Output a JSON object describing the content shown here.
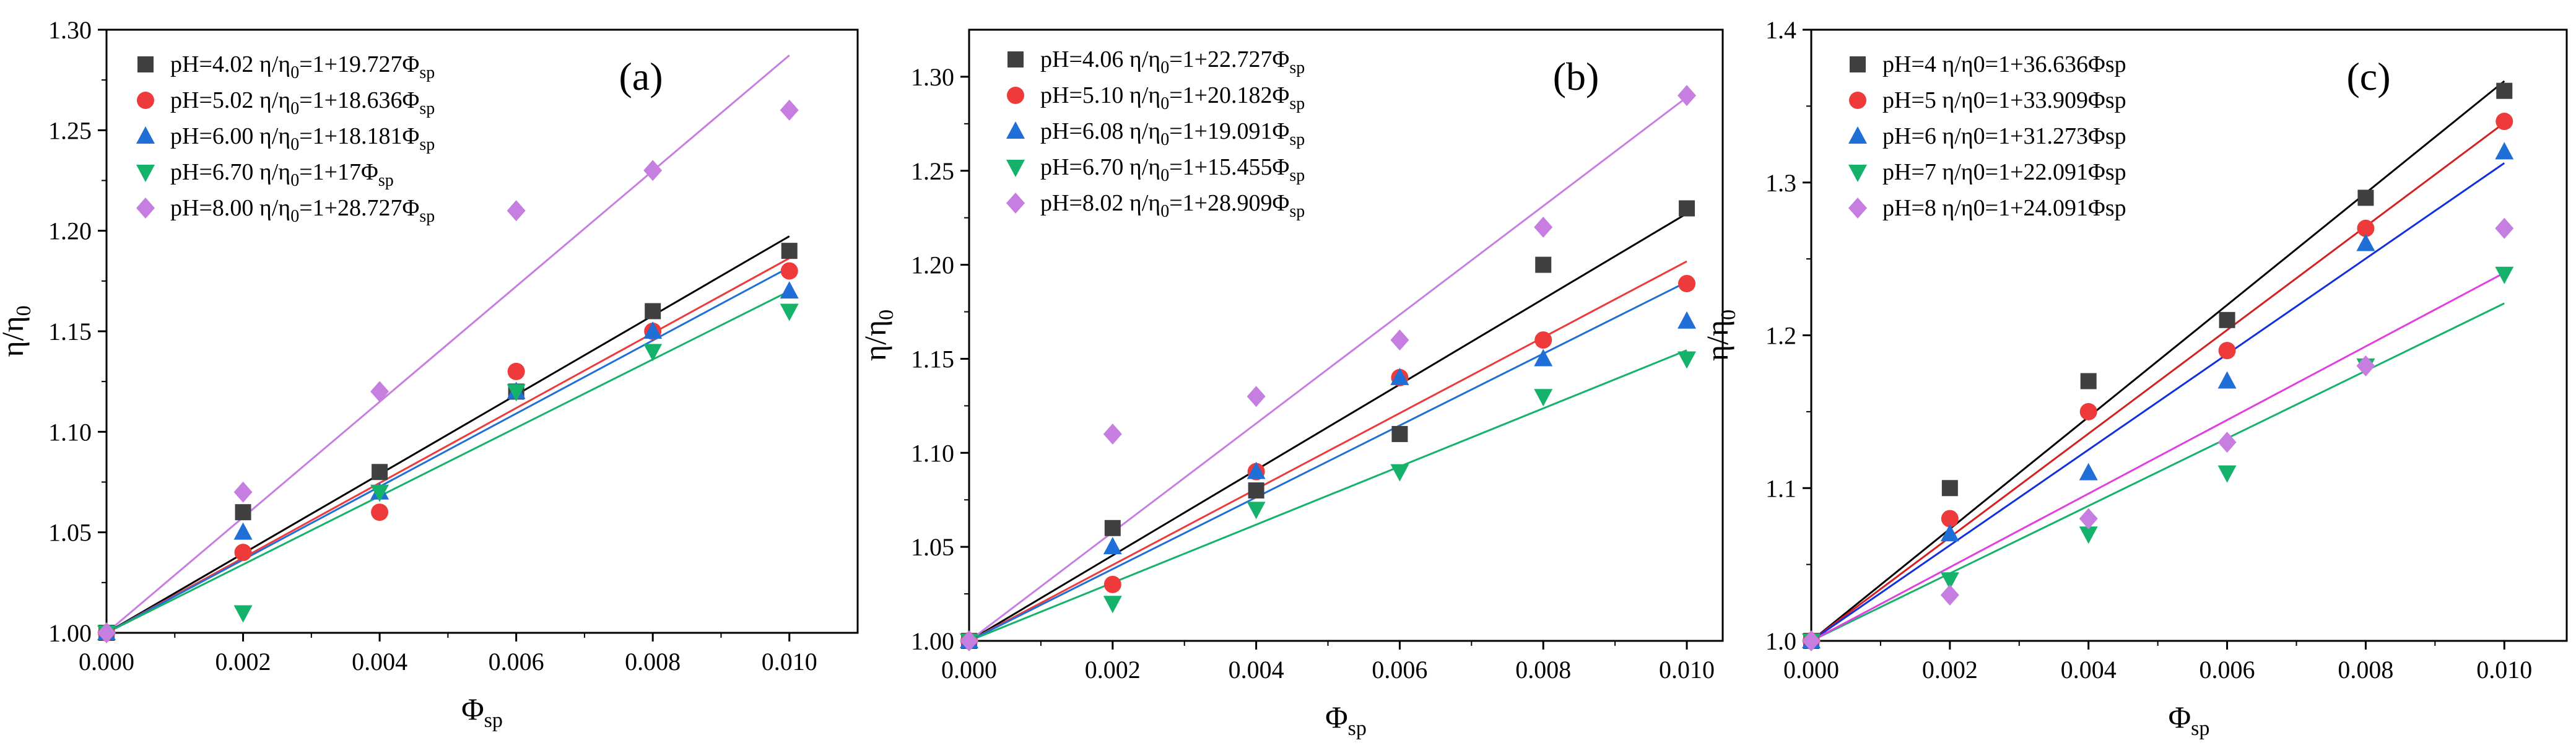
{
  "chart_data": [
    {
      "type": "scatter",
      "panel_label": "(a)",
      "xlabel_main": "Φ",
      "xlabel_sub": "sp",
      "ylabel_main": "η/η",
      "ylabel_sub": "0",
      "xlim": [
        0,
        0.011
      ],
      "ylim": [
        1.0,
        1.3
      ],
      "x_ticks": [
        0,
        0.002,
        0.004,
        0.006,
        0.008,
        0.01
      ],
      "x_tick_labels": [
        "0.000",
        "0.002",
        "0.004",
        "0.006",
        "0.008",
        "0.010"
      ],
      "y_ticks": [
        1.0,
        1.05,
        1.1,
        1.15,
        1.2,
        1.25,
        1.3
      ],
      "y_tick_labels": [
        "1.00",
        "1.05",
        "1.10",
        "1.15",
        "1.20",
        "1.25",
        "1.30"
      ],
      "x": [
        0,
        0.002,
        0.004,
        0.006,
        0.008,
        0.01
      ],
      "series": [
        {
          "name": "pH=4.02",
          "eq_main": "η/η",
          "eq_sub0": "0",
          "eq_rest": "=1+19.727Φ",
          "eq_sub": "sp",
          "marker": "square",
          "color": "#404040",
          "line_color": "#000000",
          "slope": 19.727,
          "values": [
            1.0,
            1.06,
            1.08,
            1.12,
            1.16,
            1.19
          ]
        },
        {
          "name": "pH=5.02",
          "eq_main": "η/η",
          "eq_sub0": "0",
          "eq_rest": "=1+18.636Φ",
          "eq_sub": "sp",
          "marker": "circle",
          "color": "#ee3a3a",
          "line_color": "#ee3a3a",
          "slope": 18.636,
          "values": [
            1.0,
            1.04,
            1.06,
            1.13,
            1.15,
            1.18
          ]
        },
        {
          "name": "pH=6.00",
          "eq_main": "η/η",
          "eq_sub0": "0",
          "eq_rest": "=1+18.181Φ",
          "eq_sub": "sp",
          "marker": "triangle-up",
          "color": "#1f6fd6",
          "line_color": "#1f6fd6",
          "slope": 18.181,
          "values": [
            1.0,
            1.05,
            1.07,
            1.12,
            1.15,
            1.17
          ]
        },
        {
          "name": "pH=6.70",
          "eq_main": "η/η",
          "eq_sub0": "0",
          "eq_rest": "=1+17Φ",
          "eq_sub": "sp",
          "marker": "triangle-down",
          "color": "#15b26b",
          "line_color": "#15b26b",
          "slope": 17,
          "values": [
            1.0,
            1.01,
            1.07,
            1.12,
            1.14,
            1.16
          ]
        },
        {
          "name": "pH=8.00",
          "eq_main": "η/η",
          "eq_sub0": "0",
          "eq_rest": "=1+28.727Φ",
          "eq_sub": "sp",
          "marker": "diamond",
          "color": "#c67ee0",
          "line_color": "#c67ee0",
          "slope": 28.727,
          "values": [
            1.0,
            1.07,
            1.12,
            1.21,
            1.23,
            1.26
          ]
        }
      ]
    },
    {
      "type": "scatter",
      "panel_label": "(b)",
      "xlabel_main": "Φ",
      "xlabel_sub": "sp",
      "ylabel_main": "η/η",
      "ylabel_sub": "0",
      "xlim": [
        0,
        0.0105
      ],
      "ylim": [
        1.0,
        1.325
      ],
      "x_ticks": [
        0,
        0.002,
        0.004,
        0.006,
        0.008,
        0.01
      ],
      "x_tick_labels": [
        "0.000",
        "0.002",
        "0.004",
        "0.006",
        "0.008",
        "0.010"
      ],
      "y_ticks": [
        1.0,
        1.05,
        1.1,
        1.15,
        1.2,
        1.25,
        1.3
      ],
      "y_tick_labels": [
        "1.00",
        "1.05",
        "1.10",
        "1.15",
        "1.20",
        "1.25",
        "1.30"
      ],
      "x": [
        0,
        0.002,
        0.004,
        0.006,
        0.008,
        0.01
      ],
      "series": [
        {
          "name": "pH=4.06",
          "eq_main": "η/η",
          "eq_sub0": "0",
          "eq_rest": "=1+22.727Φ",
          "eq_sub": "sp",
          "marker": "square",
          "color": "#404040",
          "line_color": "#000000",
          "slope": 22.727,
          "values": [
            1.0,
            1.06,
            1.08,
            1.11,
            1.2,
            1.23
          ]
        },
        {
          "name": "pH=5.10",
          "eq_main": "η/η",
          "eq_sub0": "0",
          "eq_rest": "=1+20.182Φ",
          "eq_sub": "sp",
          "marker": "circle",
          "color": "#ee3a3a",
          "line_color": "#ee3a3a",
          "slope": 20.182,
          "values": [
            1.0,
            1.03,
            1.09,
            1.14,
            1.16,
            1.19
          ]
        },
        {
          "name": "pH=6.08",
          "eq_main": "η/η",
          "eq_sub0": "0",
          "eq_rest": "=1+19.091Φ",
          "eq_sub": "sp",
          "marker": "triangle-up",
          "color": "#1f6fd6",
          "line_color": "#1f6fd6",
          "slope": 19.091,
          "values": [
            1.0,
            1.05,
            1.09,
            1.14,
            1.15,
            1.17
          ]
        },
        {
          "name": "pH=6.70",
          "eq_main": "η/η",
          "eq_sub0": "0",
          "eq_rest": "=1+15.455Φ",
          "eq_sub": "sp",
          "marker": "triangle-down",
          "color": "#15b26b",
          "line_color": "#15b26b",
          "slope": 15.455,
          "values": [
            1.0,
            1.02,
            1.07,
            1.09,
            1.13,
            1.15
          ]
        },
        {
          "name": "pH=8.02",
          "eq_main": "η/η",
          "eq_sub0": "0",
          "eq_rest": "=1+28.909Φ",
          "eq_sub": "sp",
          "marker": "diamond",
          "color": "#c67ee0",
          "line_color": "#c67ee0",
          "slope": 28.909,
          "values": [
            1.0,
            1.11,
            1.13,
            1.16,
            1.22,
            1.29
          ]
        }
      ]
    },
    {
      "type": "scatter",
      "panel_label": "(c)",
      "xlabel_main": "Φ",
      "xlabel_sub": "sp",
      "ylabel_main": "η/η",
      "ylabel_sub": "0",
      "xlim": [
        0,
        0.0109
      ],
      "ylim": [
        1.0,
        1.4
      ],
      "x_ticks": [
        0,
        0.002,
        0.004,
        0.006,
        0.008,
        0.01
      ],
      "x_tick_labels": [
        "0.000",
        "0.002",
        "0.004",
        "0.006",
        "0.008",
        "0.010"
      ],
      "y_ticks": [
        1.0,
        1.1,
        1.2,
        1.3,
        1.4
      ],
      "y_tick_labels": [
        "1.0",
        "1.1",
        "1.2",
        "1.3",
        "1.4"
      ],
      "x": [
        0,
        0.002,
        0.004,
        0.006,
        0.008,
        0.01
      ],
      "series": [
        {
          "name": "pH=4",
          "eq_main": "η/η0=1+36.636Φsp",
          "eq_sub0": "",
          "eq_rest": "",
          "eq_sub": "",
          "marker": "square",
          "color": "#404040",
          "line_color": "#000000",
          "slope": 36.636,
          "values": [
            1.0,
            1.1,
            1.17,
            1.21,
            1.29,
            1.36
          ]
        },
        {
          "name": "pH=5",
          "eq_main": "η/η0=1+33.909Φsp",
          "eq_sub0": "",
          "eq_rest": "",
          "eq_sub": "",
          "marker": "circle",
          "color": "#ee3a3a",
          "line_color": "#d42020",
          "slope": 33.909,
          "values": [
            1.0,
            1.08,
            1.15,
            1.19,
            1.27,
            1.34
          ]
        },
        {
          "name": "pH=6",
          "eq_main": "η/η0=1+31.273Φsp",
          "eq_sub0": "",
          "eq_rest": "",
          "eq_sub": "",
          "marker": "triangle-up",
          "color": "#1f6fd6",
          "line_color": "#1030e0",
          "slope": 31.273,
          "values": [
            1.0,
            1.07,
            1.11,
            1.17,
            1.26,
            1.32
          ]
        },
        {
          "name": "pH=7",
          "eq_main": "η/η0=1+22.091Φsp",
          "eq_sub0": "",
          "eq_rest": "",
          "eq_sub": "",
          "marker": "triangle-down",
          "color": "#15b26b",
          "line_color": "#15b26b",
          "slope": 22.091,
          "values": [
            1.0,
            1.04,
            1.07,
            1.11,
            1.18,
            1.24
          ]
        },
        {
          "name": "pH=8",
          "eq_main": "η/η0=1+24.091Φsp",
          "eq_sub0": "",
          "eq_rest": "",
          "eq_sub": "",
          "marker": "diamond",
          "color": "#c67ee0",
          "line_color": "#e040e0",
          "slope": 24.091,
          "values": [
            1.0,
            1.03,
            1.08,
            1.13,
            1.18,
            1.27
          ]
        }
      ]
    }
  ]
}
